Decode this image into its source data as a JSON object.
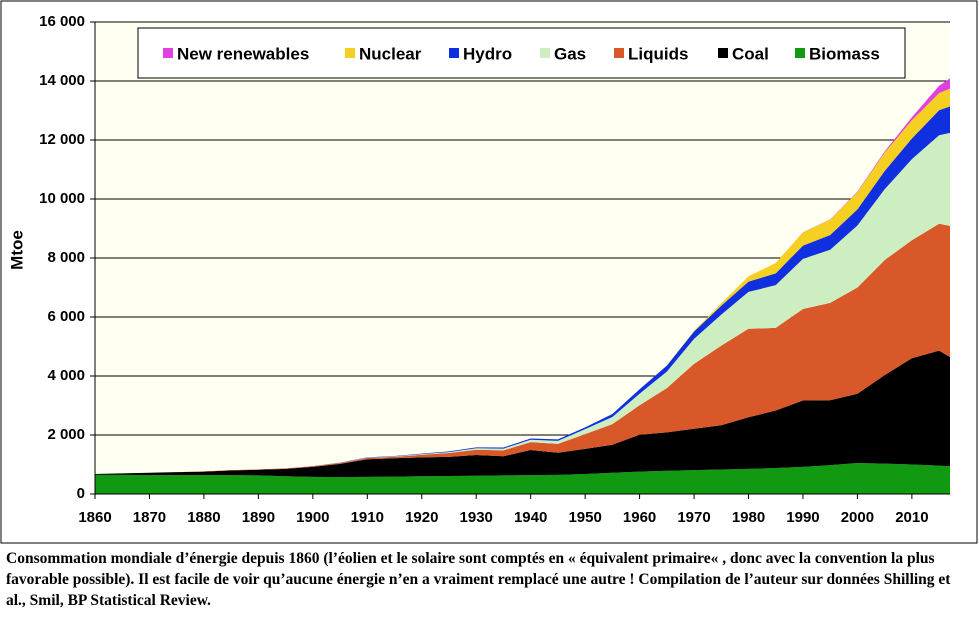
{
  "chart_data": {
    "type": "stacked_area",
    "y_label": "Mtoe",
    "caption": "Consommation mondiale d’énergie depuis 1860 (l’éolien et le solaire sont comptés en « équivalent primaire« , donc avec la convention la plus favorable possible). Il est facile de voir qu’aucune énergie n’en a vraiment remplacé une autre !  Compilation de l’auteur sur données Shilling et al., Smil, BP Statistical Review.",
    "x": [
      1860,
      1865,
      1870,
      1875,
      1880,
      1885,
      1890,
      1895,
      1900,
      1905,
      1910,
      1915,
      1920,
      1925,
      1930,
      1935,
      1940,
      1945,
      1950,
      1955,
      1960,
      1965,
      1970,
      1975,
      1980,
      1985,
      1990,
      1995,
      2000,
      2005,
      2010,
      2015,
      2017
    ],
    "xlim": [
      1860,
      2017
    ],
    "xticks": [
      1860,
      1870,
      1880,
      1890,
      1900,
      1910,
      1920,
      1930,
      1940,
      1950,
      1960,
      1970,
      1980,
      1990,
      2000,
      2010
    ],
    "ylim": [
      0,
      16000
    ],
    "yticks": [
      0,
      {
        "value": 2000,
        "label": "2 000"
      },
      {
        "value": 4000,
        "label": "4 000"
      },
      {
        "value": 6000,
        "label": "6 000"
      },
      {
        "value": 8000,
        "label": "8 000"
      },
      {
        "value": 10000,
        "label": "10 000"
      },
      {
        "value": 12000,
        "label": "12 000"
      },
      {
        "value": 14000,
        "label": "14 000"
      },
      {
        "value": 16000,
        "label": "16 000"
      }
    ],
    "grid": true,
    "series": [
      {
        "name": "New renewables",
        "color": "#e040e0",
        "values": [
          0,
          0,
          0,
          0,
          0,
          0,
          0,
          0,
          0,
          0,
          0,
          0,
          0,
          0,
          0,
          0,
          0,
          0,
          0,
          0,
          0,
          0,
          0,
          0,
          0,
          0,
          5,
          10,
          20,
          40,
          100,
          250,
          350
        ]
      },
      {
        "name": "Nuclear",
        "color": "#f5d020",
        "values": [
          0,
          0,
          0,
          0,
          0,
          0,
          0,
          0,
          0,
          0,
          0,
          0,
          0,
          0,
          0,
          0,
          0,
          0,
          0,
          0,
          0,
          5,
          20,
          80,
          180,
          350,
          450,
          520,
          580,
          620,
          620,
          580,
          600
        ]
      },
      {
        "name": "Hydro",
        "color": "#1030e0",
        "values": [
          0,
          0,
          0,
          0,
          0,
          0,
          0,
          0,
          5,
          8,
          10,
          15,
          20,
          25,
          30,
          35,
          40,
          50,
          60,
          100,
          150,
          200,
          250,
          300,
          350,
          400,
          450,
          500,
          550,
          620,
          700,
          850,
          900
        ]
      },
      {
        "name": "Gas",
        "color": "#cdeec0",
        "values": [
          0,
          0,
          0,
          0,
          0,
          0,
          0,
          0,
          0,
          5,
          10,
          15,
          20,
          30,
          50,
          60,
          80,
          100,
          170,
          240,
          390,
          560,
          850,
          1050,
          1250,
          1450,
          1700,
          1800,
          2100,
          2400,
          2750,
          3000,
          3150
        ]
      },
      {
        "name": "Liquids",
        "color": "#d9582a",
        "values": [
          0,
          0,
          0,
          0,
          5,
          10,
          15,
          20,
          20,
          30,
          40,
          50,
          90,
          130,
          180,
          200,
          270,
          300,
          500,
          700,
          1000,
          1500,
          2200,
          2700,
          3000,
          2800,
          3100,
          3300,
          3600,
          3900,
          4000,
          4300,
          4450
        ]
      },
      {
        "name": "Coal",
        "color": "#000000",
        "values": [
          30,
          50,
          80,
          100,
          120,
          160,
          190,
          250,
          340,
          450,
          600,
          620,
          640,
          650,
          700,
          650,
          850,
          750,
          850,
          950,
          1250,
          1300,
          1400,
          1500,
          1750,
          1950,
          2250,
          2200,
          2350,
          3000,
          3600,
          3900,
          3700
        ]
      },
      {
        "name": "Biomass",
        "color": "#119911",
        "values": [
          650,
          650,
          640,
          640,
          640,
          640,
          630,
          600,
          580,
          570,
          580,
          590,
          600,
          610,
          620,
          630,
          640,
          650,
          680,
          720,
          760,
          790,
          810,
          830,
          850,
          880,
          920,
          980,
          1050,
          1030,
          1000,
          960,
          940
        ]
      }
    ]
  }
}
